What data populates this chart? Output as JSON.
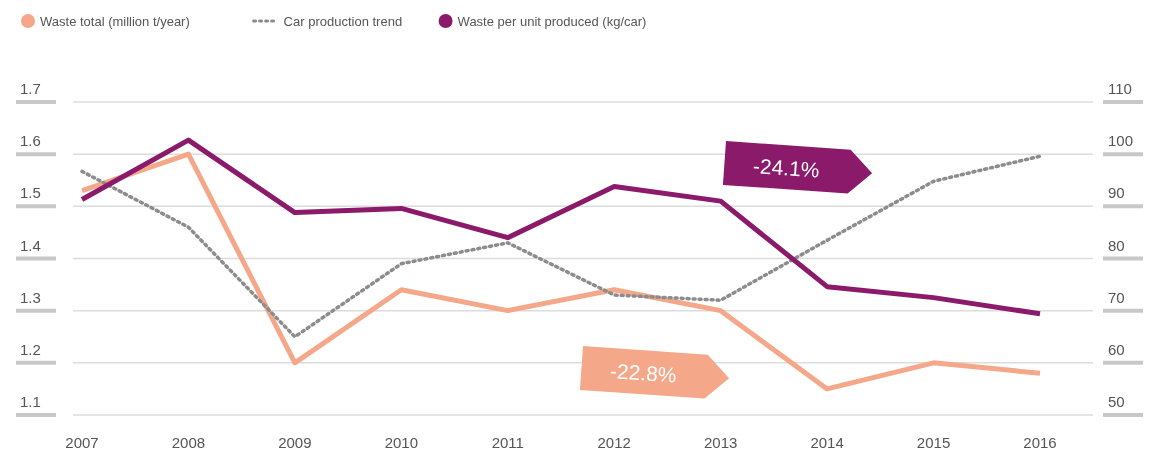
{
  "chart_data": {
    "type": "line",
    "categories": [
      "2007",
      "2008",
      "2009",
      "2010",
      "2011",
      "2012",
      "2013",
      "2014",
      "2015",
      "2016"
    ],
    "series": [
      {
        "name": "Waste total (million t/year)",
        "color": "#f4a889",
        "values": [
          1.53,
          1.6,
          1.2,
          1.34,
          1.3,
          1.34,
          1.3,
          1.15,
          1.2,
          1.18
        ]
      },
      {
        "name": "Car production trend",
        "color": "#8c8c8c",
        "axis": "y2",
        "line_style": "dotted",
        "values": [
          96.7,
          86,
          65,
          79,
          83,
          73,
          72,
          83.5,
          94.8,
          99.6
        ]
      },
      {
        "name": "Waste per unit produced (kg/car)",
        "color": "#8b1a6b",
        "axis": "y2",
        "values": [
          91.3,
          102.7,
          88.8,
          89.6,
          84,
          93.8,
          91,
          74.6,
          72.5,
          69.4
        ]
      }
    ],
    "ylim": [
      1.1,
      1.7
    ],
    "yticks": [
      1.1,
      1.2,
      1.3,
      1.4,
      1.5,
      1.6,
      1.7
    ],
    "y2lim": [
      50,
      110
    ],
    "y2ticks": [
      50,
      60,
      70,
      80,
      90,
      100,
      110
    ],
    "grid": "y",
    "legend": "top left",
    "line_style": "solid",
    "marker": "none",
    "annotations": [
      "-24.1%",
      "-22.8%"
    ]
  }
}
